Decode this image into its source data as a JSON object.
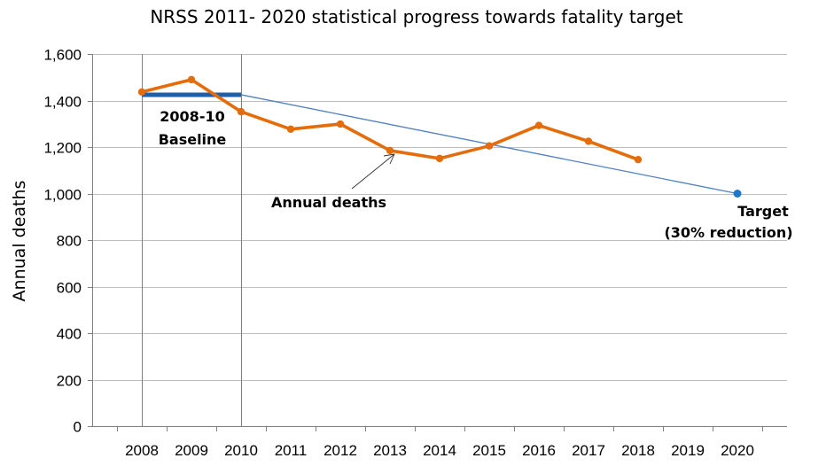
{
  "chart_data": {
    "type": "line",
    "title": "NRSS 2011- 2020 statistical progress towards fatality target",
    "xlabel": "",
    "ylabel": "Annual deaths",
    "ylim": [
      0,
      1600
    ],
    "yticks": [
      0,
      200,
      400,
      600,
      800,
      1000,
      1200,
      1400,
      1600
    ],
    "ytick_labels": [
      "0",
      "200",
      "400",
      "600",
      "800",
      "1,000",
      "1,200",
      "1,400",
      "1,600"
    ],
    "x": [
      2008,
      2009,
      2010,
      2011,
      2012,
      2013,
      2014,
      2015,
      2016,
      2017,
      2018,
      2019,
      2020
    ],
    "xtick_labels": [
      "2008",
      "2009",
      "2010",
      "2011",
      "2012",
      "2013",
      "2014",
      "2015",
      "2016",
      "2017",
      "2018",
      "2019",
      "2020"
    ],
    "grid": true,
    "series": [
      {
        "name": "Annual deaths",
        "color": "#e46c0a",
        "x": [
          2008,
          2009,
          2010,
          2011,
          2012,
          2013,
          2014,
          2015,
          2016,
          2017,
          2018
        ],
        "values": [
          1437,
          1490,
          1352,
          1277,
          1299,
          1185,
          1151,
          1205,
          1293,
          1225,
          1146
        ]
      },
      {
        "name": "Target trajectory",
        "color": "#4f81bd",
        "x": [
          2010,
          2020
        ],
        "values": [
          1425,
          1000
        ]
      },
      {
        "name": "2008-10 Baseline",
        "color": "#1f5fa8",
        "x": [
          2008,
          2010
        ],
        "values": [
          1425,
          1425
        ]
      }
    ],
    "target_point": {
      "x": 2020,
      "value": 1000,
      "color": "#1f77c8"
    },
    "reference_lines_x": [
      2008,
      2010
    ],
    "annotations": {
      "baseline_line1": "2008-10",
      "baseline_line2": "Baseline",
      "annual_deaths": "Annual deaths",
      "target_line1": "Target",
      "target_line2": "(30% reduction)"
    }
  }
}
